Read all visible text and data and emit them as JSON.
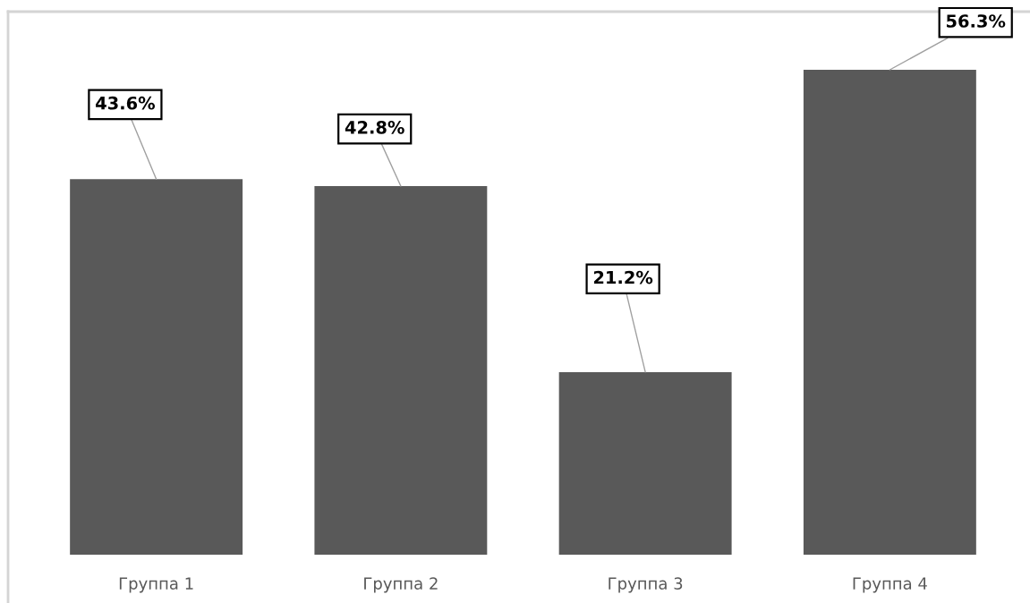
{
  "chart_data": {
    "type": "bar",
    "categories": [
      "Группа 1",
      "Группа 2",
      "Группа 3",
      "Группа 4"
    ],
    "values": [
      43.6,
      42.8,
      21.2,
      56.3
    ],
    "color": "#595959",
    "value_labels": [
      "43.6%",
      "42.8%",
      "21.2%",
      "56.3%"
    ]
  }
}
